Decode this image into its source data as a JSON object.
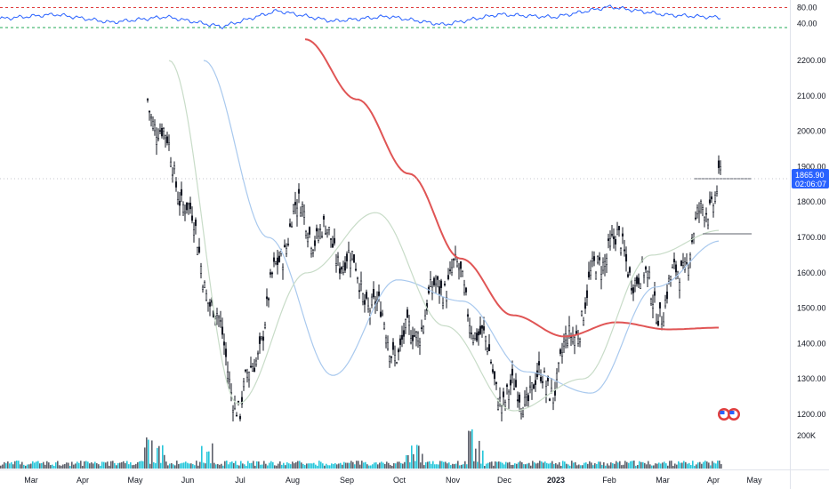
{
  "chart_data": [
    {
      "pane": "rsi",
      "type": "line",
      "y_ticks": [
        "80.00",
        "40.00"
      ],
      "ylim": [
        10,
        90
      ],
      "levels": [
        80,
        30
      ],
      "level_color": "#e03e3e",
      "level2_color": "#22aa55",
      "line_color": "#2962ff",
      "series": [
        {
          "x": [
            "Mar",
            "Apr",
            "May",
            "Jun",
            "Jul",
            "Aug",
            "Sep",
            "Oct",
            "Nov",
            "Dec",
            "2023",
            "Feb",
            "Mar",
            "Apr"
          ],
          "values": [
            52,
            63,
            43,
            57,
            32,
            72,
            46,
            58,
            37,
            63,
            56,
            82,
            62,
            55
          ]
        }
      ]
    },
    {
      "pane": "price",
      "type": "candlestick",
      "y_ticks": [
        "2200.00",
        "2100.00",
        "2000.00",
        "1900.00",
        "1800.00",
        "1700.00",
        "1600.00",
        "1500.00",
        "1400.00",
        "1300.00",
        "1200.00"
      ],
      "ylim": [
        1170,
        2260
      ],
      "x_ticks": [
        "Mar",
        "Apr",
        "May",
        "Jun",
        "Jul",
        "Aug",
        "Sep",
        "Oct",
        "Nov",
        "Dec",
        "2023",
        "Feb",
        "Mar",
        "Apr",
        "May"
      ],
      "ohlc_close_path": {
        "dates": [
          "May",
          "Jun",
          "Jul",
          "Aug",
          "Sep",
          "Oct",
          "Nov",
          "Dec",
          "2023",
          "Feb",
          "Mar",
          "Apr"
        ],
        "close": [
          2200,
          1780,
          1200,
          1780,
          1640,
          1370,
          1620,
          1240,
          1300,
          1700,
          1500,
          1866
        ]
      },
      "moving_averages": [
        {
          "color": "#e05555",
          "values": [
            2260,
            2090,
            1880,
            1640,
            1480,
            1420,
            1460,
            1440,
            1445
          ]
        },
        {
          "color": "#a9c9ee",
          "values": [
            2200,
            1700,
            1310,
            1580,
            1520,
            1320,
            1260,
            1560,
            1690
          ]
        },
        {
          "color": "#c8dcc8",
          "values": [
            2200,
            1230,
            1600,
            1770,
            1450,
            1210,
            1300,
            1650,
            1720
          ]
        }
      ],
      "horizontal_lines": [
        1865.9,
        1710
      ],
      "current_price": "1865.90",
      "countdown": "02:06:07",
      "price_tag_color": "#2962ff",
      "candle_color": "#131722"
    },
    {
      "pane": "volume",
      "type": "bar",
      "y_ticks": [
        "200K"
      ],
      "up_color": "#26c6da",
      "down_color": "#5d606b",
      "peaks": [
        {
          "x": "May",
          "value": 240000
        },
        {
          "x": "Jun",
          "value": 200000
        },
        {
          "x": "Oct",
          "value": 180000
        },
        {
          "x": "Nov",
          "value": 300000
        }
      ]
    }
  ]
}
